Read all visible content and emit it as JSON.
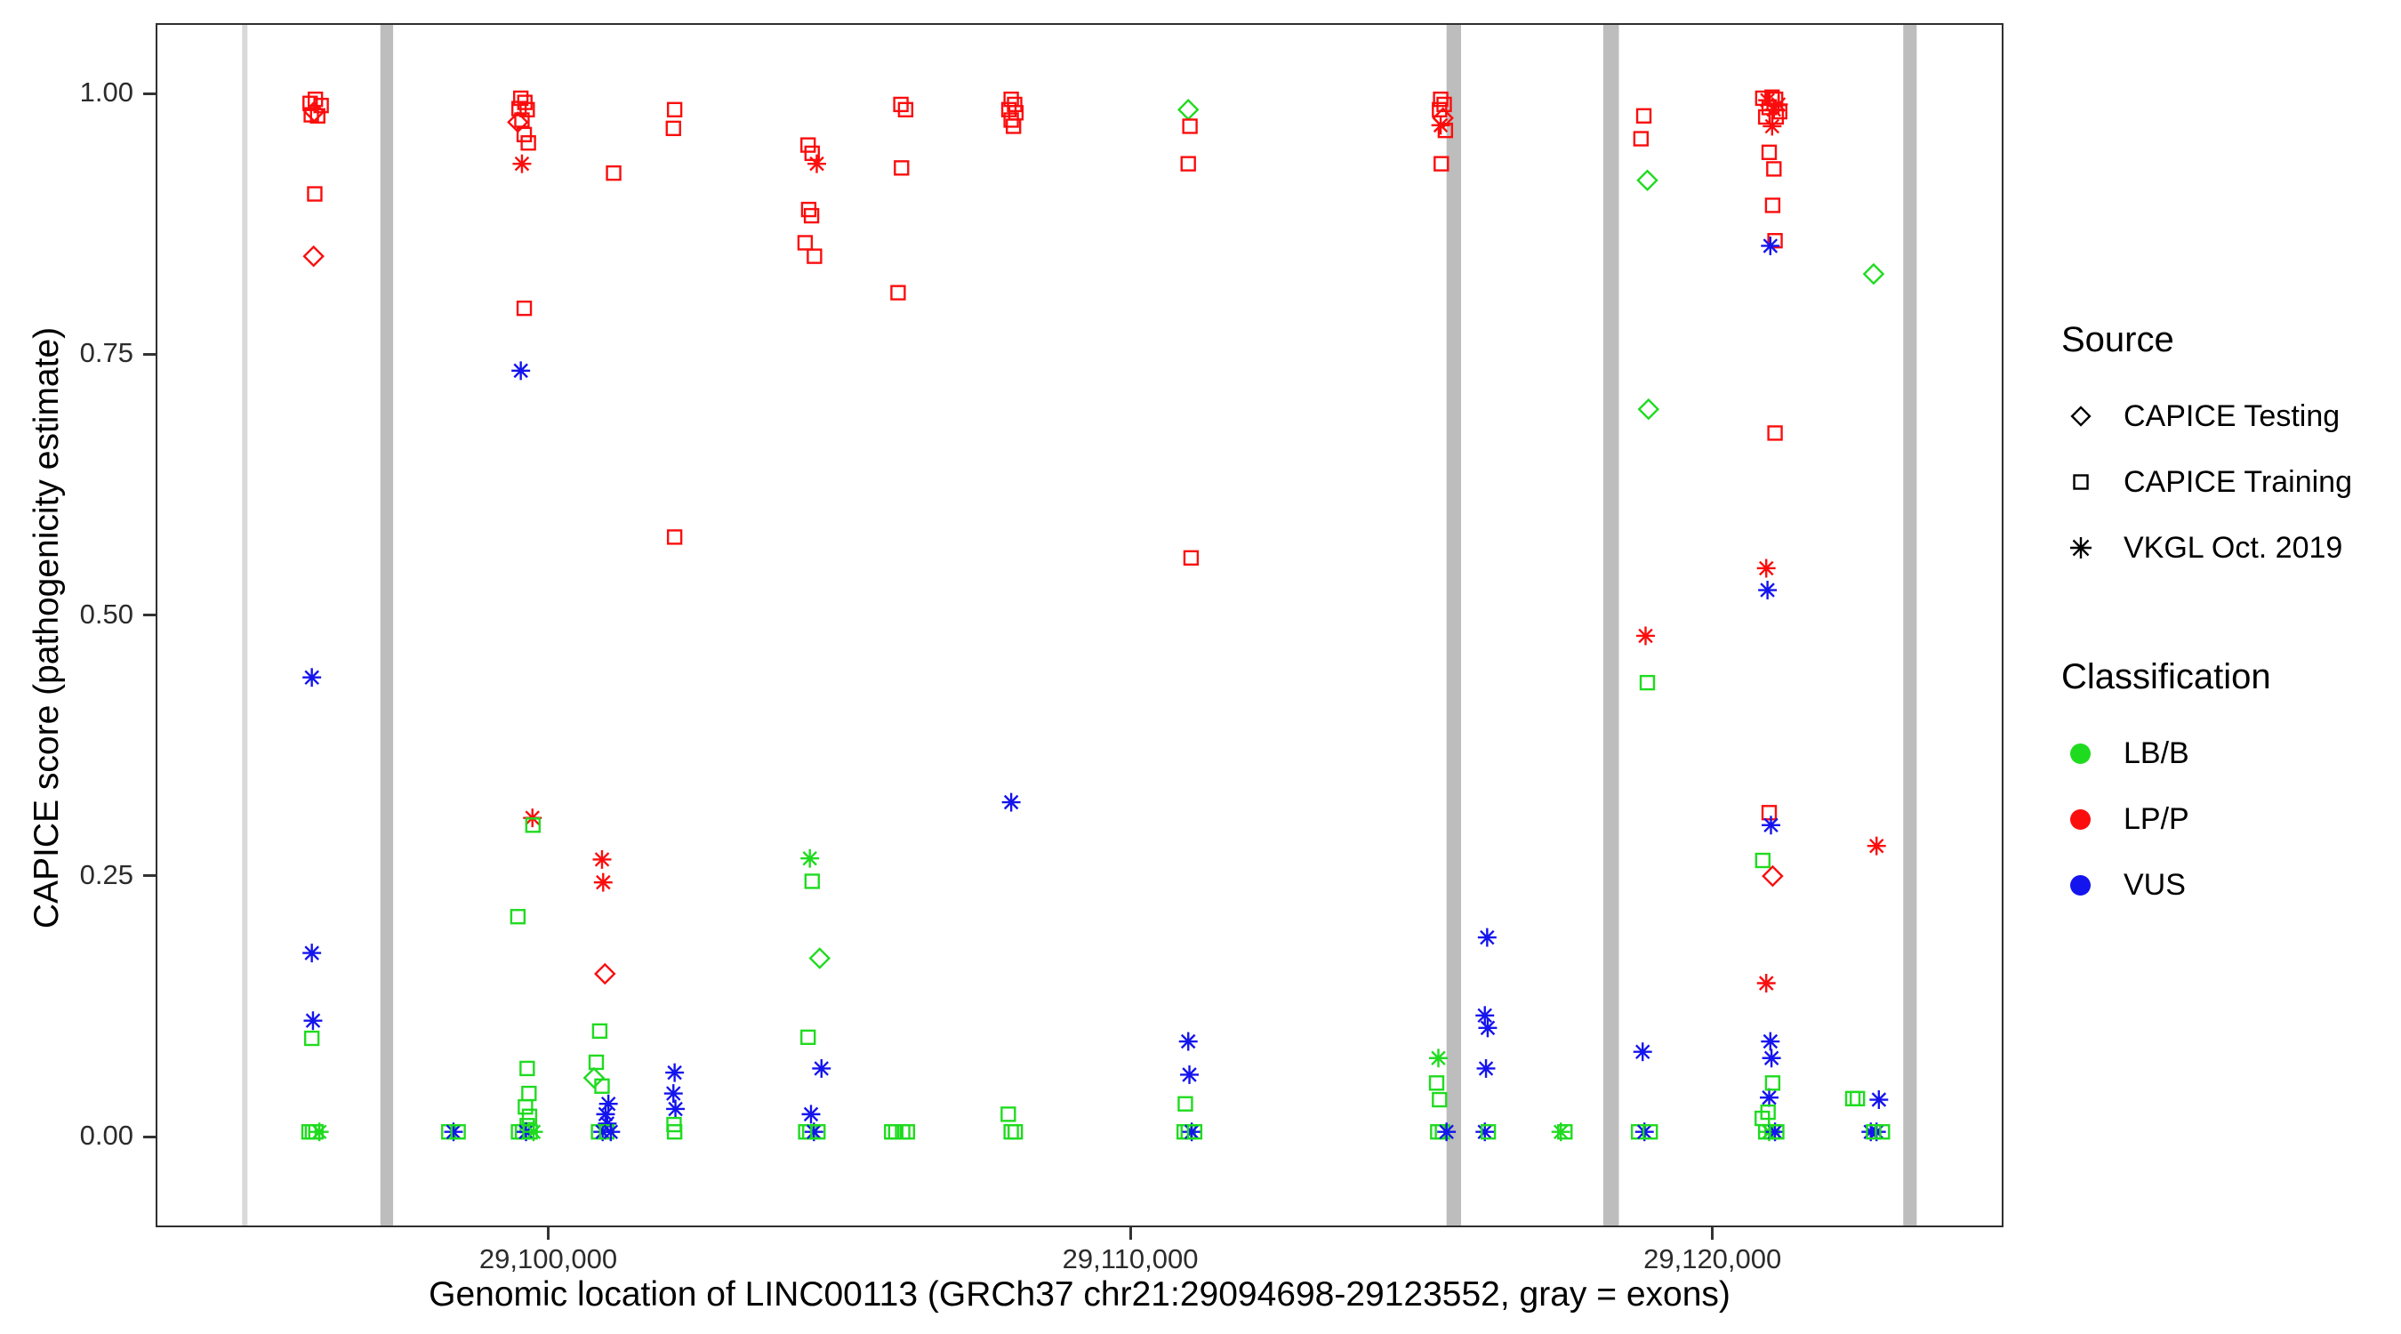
{
  "legend": {
    "source": {
      "title": "Source",
      "items": [
        {
          "label": "CAPICE Testing",
          "shape": "diamond"
        },
        {
          "label": "CAPICE Training",
          "shape": "square"
        },
        {
          "label": "VKGL Oct. 2019",
          "shape": "asterisk"
        }
      ]
    },
    "classification": {
      "title": "Classification",
      "items": [
        {
          "label": "LB/B",
          "class": "LB"
        },
        {
          "label": "LP/P",
          "class": "LP"
        },
        {
          "label": "VUS",
          "class": "VUS"
        }
      ]
    }
  },
  "chart_data": {
    "type": "scatter",
    "title": "",
    "xlabel": "Genomic location of LINC00113 (GRCh37 chr21:29094698-29123552, gray = exons)",
    "ylabel": "CAPICE score (pathogenicity estimate)",
    "x_domain": [
      29093255,
      29125000
    ],
    "y_domain": [
      -0.087,
      1.0675
    ],
    "grid": false,
    "legend_position": "right",
    "x_ticks": [
      {
        "value": 29100000,
        "label": "29,100,000"
      },
      {
        "value": 29110000,
        "label": "29,110,000"
      },
      {
        "value": 29120000,
        "label": "29,120,000"
      }
    ],
    "y_ticks": [
      {
        "value": 0,
        "label": "0.00"
      },
      {
        "value": 0.25,
        "label": "0.25"
      },
      {
        "value": 0.5,
        "label": "0.50"
      },
      {
        "value": 0.75,
        "label": "0.75"
      },
      {
        "value": 1,
        "label": "1.00"
      }
    ],
    "colors": {
      "LB": "#1FDB1F",
      "LP": "#FB0D0D",
      "VUS": "#1414EE"
    },
    "exon_color": "#BDBDBD",
    "exons": [
      [
        29094698,
        29094790
      ],
      [
        29097080,
        29097300
      ],
      [
        29115450,
        29115700
      ],
      [
        29118150,
        29118420
      ],
      [
        29123320,
        29123552
      ]
    ],
    "shapes": {
      "testing": "diamond",
      "training": "square",
      "vkgl": "asterisk"
    },
    "points": [
      [
        29095870,
        0.992,
        "training",
        "LP"
      ],
      [
        29095960,
        0.996,
        "training",
        "LP"
      ],
      [
        29096060,
        0.99,
        "training",
        "LP"
      ],
      [
        29095890,
        0.981,
        "training",
        "LP"
      ],
      [
        29096000,
        0.98,
        "training",
        "LP"
      ],
      [
        29095940,
        0.984,
        "testing",
        "LP"
      ],
      [
        29095950,
        0.905,
        "training",
        "LP"
      ],
      [
        29095930,
        0.845,
        "testing",
        "LP"
      ],
      [
        29095900,
        0.44,
        "vkgl",
        "VUS"
      ],
      [
        29095900,
        0.175,
        "vkgl",
        "VUS"
      ],
      [
        29095920,
        0.11,
        "vkgl",
        "VUS"
      ],
      [
        29095900,
        0.093,
        "training",
        "LB"
      ],
      [
        29095850,
        0.003,
        "training",
        "LB"
      ],
      [
        29095910,
        0.003,
        "training",
        "LB"
      ],
      [
        29095970,
        0.003,
        "training",
        "LB"
      ],
      [
        29096030,
        0.003,
        "vkgl",
        "LB"
      ],
      [
        29098260,
        0.003,
        "training",
        "LB"
      ],
      [
        29098340,
        0.003,
        "vkgl",
        "VUS"
      ],
      [
        29098420,
        0.003,
        "training",
        "LB"
      ],
      [
        29099500,
        0.997,
        "training",
        "LP"
      ],
      [
        29099570,
        0.993,
        "training",
        "LP"
      ],
      [
        29099470,
        0.987,
        "training",
        "LP"
      ],
      [
        29099610,
        0.986,
        "training",
        "LP"
      ],
      [
        29099520,
        0.976,
        "training",
        "LP"
      ],
      [
        29099450,
        0.974,
        "testing",
        "LP"
      ],
      [
        29099560,
        0.962,
        "training",
        "LP"
      ],
      [
        29099630,
        0.954,
        "training",
        "LP"
      ],
      [
        29099520,
        0.934,
        "vkgl",
        "LP"
      ],
      [
        29099560,
        0.795,
        "training",
        "LP"
      ],
      [
        29099500,
        0.735,
        "vkgl",
        "VUS"
      ],
      [
        29099700,
        0.305,
        "vkgl",
        "LP"
      ],
      [
        29099710,
        0.298,
        "training",
        "LB"
      ],
      [
        29099450,
        0.21,
        "training",
        "LB"
      ],
      [
        29099610,
        0.064,
        "training",
        "LB"
      ],
      [
        29099640,
        0.04,
        "training",
        "LB"
      ],
      [
        29099580,
        0.027,
        "training",
        "LB"
      ],
      [
        29099650,
        0.018,
        "training",
        "LB"
      ],
      [
        29099610,
        0.009,
        "training",
        "LB"
      ],
      [
        29099460,
        0.003,
        "training",
        "LB"
      ],
      [
        29099530,
        0.003,
        "training",
        "LB"
      ],
      [
        29099590,
        0.003,
        "vkgl",
        "VUS"
      ],
      [
        29099660,
        0.003,
        "training",
        "LB"
      ],
      [
        29099720,
        0.003,
        "vkgl",
        "LB"
      ],
      [
        29101100,
        0.925,
        "training",
        "LP"
      ],
      [
        29100900,
        0.265,
        "vkgl",
        "LP"
      ],
      [
        29100920,
        0.243,
        "vkgl",
        "LP"
      ],
      [
        29100950,
        0.155,
        "testing",
        "LP"
      ],
      [
        29100860,
        0.1,
        "training",
        "LB"
      ],
      [
        29100800,
        0.07,
        "training",
        "LB"
      ],
      [
        29100760,
        0.055,
        "testing",
        "LB"
      ],
      [
        29100900,
        0.047,
        "training",
        "LB"
      ],
      [
        29101010,
        0.03,
        "vkgl",
        "VUS"
      ],
      [
        29100960,
        0.02,
        "vkgl",
        "VUS"
      ],
      [
        29100990,
        0.011,
        "vkgl",
        "VUS"
      ],
      [
        29100840,
        0.003,
        "training",
        "LB"
      ],
      [
        29100910,
        0.003,
        "vkgl",
        "VUS"
      ],
      [
        29100980,
        0.003,
        "training",
        "LB"
      ],
      [
        29101050,
        0.003,
        "vkgl",
        "VUS"
      ],
      [
        29102150,
        0.986,
        "training",
        "LP"
      ],
      [
        29102130,
        0.968,
        "training",
        "LP"
      ],
      [
        29102150,
        0.575,
        "training",
        "LP"
      ],
      [
        29102150,
        0.06,
        "vkgl",
        "VUS"
      ],
      [
        29102130,
        0.04,
        "vkgl",
        "VUS"
      ],
      [
        29102165,
        0.025,
        "vkgl",
        "VUS"
      ],
      [
        29102140,
        0.01,
        "training",
        "LB"
      ],
      [
        29102150,
        0.003,
        "training",
        "LB"
      ],
      [
        29104450,
        0.952,
        "training",
        "LP"
      ],
      [
        29104520,
        0.944,
        "training",
        "LP"
      ],
      [
        29104600,
        0.934,
        "vkgl",
        "LP"
      ],
      [
        29104460,
        0.89,
        "training",
        "LP"
      ],
      [
        29104510,
        0.884,
        "training",
        "LP"
      ],
      [
        29104400,
        0.858,
        "training",
        "LP"
      ],
      [
        29104560,
        0.845,
        "training",
        "LP"
      ],
      [
        29104480,
        0.266,
        "vkgl",
        "LB"
      ],
      [
        29104520,
        0.244,
        "training",
        "LB"
      ],
      [
        29104650,
        0.17,
        "testing",
        "LB"
      ],
      [
        29104450,
        0.094,
        "training",
        "LB"
      ],
      [
        29104680,
        0.064,
        "vkgl",
        "VUS"
      ],
      [
        29104500,
        0.02,
        "vkgl",
        "VUS"
      ],
      [
        29104410,
        0.003,
        "training",
        "LB"
      ],
      [
        29104480,
        0.003,
        "training",
        "LB"
      ],
      [
        29104550,
        0.003,
        "vkgl",
        "VUS"
      ],
      [
        29104620,
        0.003,
        "training",
        "LB"
      ],
      [
        29106050,
        0.991,
        "training",
        "LP"
      ],
      [
        29106130,
        0.986,
        "training",
        "LP"
      ],
      [
        29106060,
        0.93,
        "training",
        "LP"
      ],
      [
        29106000,
        0.81,
        "training",
        "LP"
      ],
      [
        29105890,
        0.003,
        "training",
        "LB"
      ],
      [
        29105960,
        0.003,
        "training",
        "LB"
      ],
      [
        29106080,
        0.003,
        "training",
        "LB"
      ],
      [
        29106160,
        0.003,
        "training",
        "LB"
      ],
      [
        29107950,
        0.996,
        "training",
        "LP"
      ],
      [
        29108010,
        0.991,
        "training",
        "LP"
      ],
      [
        29107910,
        0.986,
        "training",
        "LP"
      ],
      [
        29108030,
        0.983,
        "training",
        "LP"
      ],
      [
        29107950,
        0.976,
        "training",
        "LP"
      ],
      [
        29107990,
        0.97,
        "training",
        "LP"
      ],
      [
        29107950,
        0.32,
        "vkgl",
        "VUS"
      ],
      [
        29107900,
        0.02,
        "training",
        "LB"
      ],
      [
        29107950,
        0.003,
        "training",
        "LB"
      ],
      [
        29108020,
        0.003,
        "training",
        "LB"
      ],
      [
        29111000,
        0.986,
        "testing",
        "LB"
      ],
      [
        29111030,
        0.97,
        "training",
        "LP"
      ],
      [
        29111000,
        0.934,
        "training",
        "LP"
      ],
      [
        29111050,
        0.555,
        "training",
        "LP"
      ],
      [
        29111000,
        0.09,
        "vkgl",
        "VUS"
      ],
      [
        29111020,
        0.058,
        "vkgl",
        "VUS"
      ],
      [
        29110950,
        0.03,
        "training",
        "LB"
      ],
      [
        29110930,
        0.003,
        "training",
        "LB"
      ],
      [
        29111000,
        0.003,
        "training",
        "LB"
      ],
      [
        29111060,
        0.003,
        "vkgl",
        "VUS"
      ],
      [
        29111110,
        0.003,
        "training",
        "LB"
      ],
      [
        29115350,
        0.996,
        "training",
        "LP"
      ],
      [
        29115410,
        0.991,
        "training",
        "LP"
      ],
      [
        29115330,
        0.986,
        "training",
        "LP"
      ],
      [
        29115390,
        0.978,
        "testing",
        "LP"
      ],
      [
        29115350,
        0.971,
        "vkgl",
        "LP"
      ],
      [
        29115430,
        0.966,
        "training",
        "LP"
      ],
      [
        29115360,
        0.934,
        "training",
        "LP"
      ],
      [
        29116150,
        0.19,
        "vkgl",
        "VUS"
      ],
      [
        29116110,
        0.115,
        "vkgl",
        "VUS"
      ],
      [
        29116160,
        0.103,
        "vkgl",
        "VUS"
      ],
      [
        29116130,
        0.064,
        "vkgl",
        "VUS"
      ],
      [
        29115310,
        0.074,
        "vkgl",
        "LB"
      ],
      [
        29115280,
        0.05,
        "training",
        "LB"
      ],
      [
        29115330,
        0.034,
        "training",
        "LB"
      ],
      [
        29115300,
        0.003,
        "training",
        "LB"
      ],
      [
        29115380,
        0.003,
        "training",
        "LB"
      ],
      [
        29115450,
        0.003,
        "vkgl",
        "VUS"
      ],
      [
        29116110,
        0.003,
        "vkgl",
        "VUS"
      ],
      [
        29116170,
        0.003,
        "training",
        "LB"
      ],
      [
        29117420,
        0.003,
        "vkgl",
        "LB"
      ],
      [
        29117490,
        0.003,
        "training",
        "LB"
      ],
      [
        29118850,
        0.98,
        "training",
        "LP"
      ],
      [
        29118800,
        0.958,
        "training",
        "LP"
      ],
      [
        29118910,
        0.918,
        "testing",
        "LB"
      ],
      [
        29118930,
        0.698,
        "testing",
        "LB"
      ],
      [
        29118880,
        0.48,
        "vkgl",
        "LP"
      ],
      [
        29118910,
        0.435,
        "training",
        "LB"
      ],
      [
        29118830,
        0.08,
        "vkgl",
        "VUS"
      ],
      [
        29118760,
        0.003,
        "training",
        "LB"
      ],
      [
        29118860,
        0.003,
        "vkgl",
        "VUS"
      ],
      [
        29118960,
        0.003,
        "training",
        "LB"
      ],
      [
        29120900,
        0.997,
        "training",
        "LP"
      ],
      [
        29120980,
        0.995,
        "vkgl",
        "LP"
      ],
      [
        29121060,
        0.998,
        "training",
        "LP"
      ],
      [
        29121120,
        0.996,
        "training",
        "LP"
      ],
      [
        29121170,
        0.991,
        "vkgl",
        "LP"
      ],
      [
        29121010,
        0.988,
        "training",
        "LP"
      ],
      [
        29121090,
        0.986,
        "vkgl",
        "LP"
      ],
      [
        29120950,
        0.979,
        "training",
        "LP"
      ],
      [
        29121130,
        0.979,
        "training",
        "LP"
      ],
      [
        29121190,
        0.984,
        "training",
        "LP"
      ],
      [
        29121060,
        0.97,
        "vkgl",
        "LP"
      ],
      [
        29121010,
        0.945,
        "training",
        "LP"
      ],
      [
        29121090,
        0.929,
        "training",
        "LP"
      ],
      [
        29121070,
        0.894,
        "training",
        "LP"
      ],
      [
        29121110,
        0.86,
        "training",
        "LP"
      ],
      [
        29121030,
        0.855,
        "vkgl",
        "VUS"
      ],
      [
        29121110,
        0.675,
        "training",
        "LP"
      ],
      [
        29120960,
        0.545,
        "vkgl",
        "LP"
      ],
      [
        29120980,
        0.524,
        "vkgl",
        "VUS"
      ],
      [
        29121010,
        0.31,
        "training",
        "LP"
      ],
      [
        29121040,
        0.298,
        "vkgl",
        "VUS"
      ],
      [
        29120900,
        0.264,
        "training",
        "LB"
      ],
      [
        29121070,
        0.249,
        "testing",
        "LP"
      ],
      [
        29120960,
        0.146,
        "vkgl",
        "LP"
      ],
      [
        29121030,
        0.09,
        "vkgl",
        "VUS"
      ],
      [
        29121050,
        0.074,
        "vkgl",
        "VUS"
      ],
      [
        29121010,
        0.036,
        "vkgl",
        "VUS"
      ],
      [
        29121070,
        0.05,
        "training",
        "LB"
      ],
      [
        29120890,
        0.016,
        "training",
        "LB"
      ],
      [
        29120990,
        0.022,
        "training",
        "LB"
      ],
      [
        29120950,
        0.003,
        "training",
        "LB"
      ],
      [
        29121010,
        0.003,
        "vkgl",
        "LB"
      ],
      [
        29121060,
        0.003,
        "training",
        "LB"
      ],
      [
        29121110,
        0.003,
        "vkgl",
        "VUS"
      ],
      [
        29121140,
        0.003,
        "training",
        "LB"
      ],
      [
        29122810,
        0.828,
        "testing",
        "LB"
      ],
      [
        29122860,
        0.278,
        "vkgl",
        "LP"
      ],
      [
        29122450,
        0.035,
        "training",
        "LB"
      ],
      [
        29122530,
        0.035,
        "training",
        "LB"
      ],
      [
        29122900,
        0.034,
        "vkgl",
        "VUS"
      ],
      [
        29122760,
        0.003,
        "vkgl",
        "VUS"
      ],
      [
        29122860,
        0.003,
        "vkgl",
        "VUS"
      ],
      [
        29122810,
        0.003,
        "training",
        "LB"
      ],
      [
        29122960,
        0.003,
        "training",
        "LB"
      ]
    ]
  }
}
